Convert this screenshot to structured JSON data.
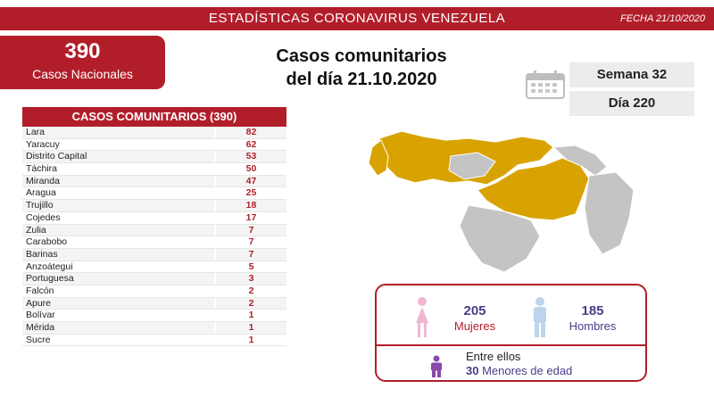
{
  "header": {
    "title": "ESTADÍSTICAS CORONAVIRUS VENEZUELA",
    "date": "FECHA 21/10/2020"
  },
  "national": {
    "number": "390",
    "label": "Casos Nacionales"
  },
  "headline": {
    "line1": "Casos comunitarios",
    "line2": "del día 21.10.2020"
  },
  "calendar": {
    "icon": "calendar-icon",
    "week": "Semana 32",
    "day": "Día 220"
  },
  "table": {
    "header": "CASOS COMUNITARIOS (390)",
    "rows": [
      {
        "state": "Lara",
        "count": "82"
      },
      {
        "state": "Yaracuy",
        "count": "62"
      },
      {
        "state": "Distrito Capital",
        "count": "53"
      },
      {
        "state": "Táchira",
        "count": "50"
      },
      {
        "state": "Miranda",
        "count": "47"
      },
      {
        "state": "Aragua",
        "count": "25"
      },
      {
        "state": "Trujillo",
        "count": "18"
      },
      {
        "state": "Cojedes",
        "count": "17"
      },
      {
        "state": "Zulia",
        "count": "7"
      },
      {
        "state": "Carabobo",
        "count": "7"
      },
      {
        "state": "Barinas",
        "count": "7"
      },
      {
        "state": "Anzoátegui",
        "count": "5"
      },
      {
        "state": "Portuguesa",
        "count": "3"
      },
      {
        "state": "Falcón",
        "count": "2"
      },
      {
        "state": "Apure",
        "count": "2"
      },
      {
        "state": "Bolívar",
        "count": "1"
      },
      {
        "state": "Mérida",
        "count": "1"
      },
      {
        "state": "Sucre",
        "count": "1"
      }
    ]
  },
  "gender": {
    "women_count": "205",
    "women_label": "Mujeres",
    "men_count": "185",
    "men_label": "Hombres",
    "between_label": "Entre ellos",
    "minors_count": "30",
    "minors_label": "Menores de edad"
  },
  "colors": {
    "brand_red": "#b11e2a",
    "map_affected": "#d8a300",
    "map_unaffected": "#c4c4c4",
    "female_pink": "#f0b8d0",
    "male_blue": "#bcd4ec",
    "minor_purple": "#8a4aa8"
  }
}
